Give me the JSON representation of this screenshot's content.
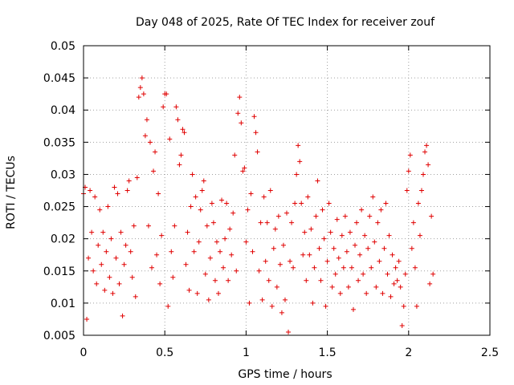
{
  "chart_data": {
    "type": "scatter",
    "title": "Day 048 of 2025, Rate Of TEC Index for receiver zouf",
    "xlabel": "GPS time / hours",
    "ylabel": "ROTI / TECUs",
    "xlim": [
      0,
      2.5
    ],
    "ylim": [
      0.005,
      0.05
    ],
    "xticks": [
      0,
      0.5,
      1,
      1.5,
      2,
      2.5
    ],
    "xtick_labels": [
      "0",
      "0.5",
      "1",
      "1.5",
      "2",
      "2.5"
    ],
    "yticks": [
      0.005,
      0.01,
      0.015,
      0.02,
      0.025,
      0.03,
      0.035,
      0.04,
      0.045,
      0.05
    ],
    "ytick_labels": [
      "0.005",
      "0.01",
      "0.015",
      "0.02",
      "0.025",
      "0.03",
      "0.035",
      "0.04",
      "0.045",
      "0.05"
    ],
    "grid": true,
    "marker": "+",
    "series": [
      {
        "name": "ROTI",
        "color": "#e00000",
        "points": [
          [
            0.0,
            0.027
          ],
          [
            0.01,
            0.028
          ],
          [
            0.02,
            0.0075
          ],
          [
            0.03,
            0.017
          ],
          [
            0.04,
            0.0275
          ],
          [
            0.05,
            0.021
          ],
          [
            0.06,
            0.015
          ],
          [
            0.07,
            0.0265
          ],
          [
            0.08,
            0.013
          ],
          [
            0.09,
            0.019
          ],
          [
            0.1,
            0.0245
          ],
          [
            0.11,
            0.016
          ],
          [
            0.12,
            0.021
          ],
          [
            0.13,
            0.012
          ],
          [
            0.14,
            0.018
          ],
          [
            0.15,
            0.025
          ],
          [
            0.16,
            0.014
          ],
          [
            0.17,
            0.02
          ],
          [
            0.18,
            0.0115
          ],
          [
            0.19,
            0.028
          ],
          [
            0.2,
            0.017
          ],
          [
            0.21,
            0.027
          ],
          [
            0.22,
            0.013
          ],
          [
            0.23,
            0.021
          ],
          [
            0.24,
            0.008
          ],
          [
            0.25,
            0.016
          ],
          [
            0.26,
            0.019
          ],
          [
            0.27,
            0.0275
          ],
          [
            0.28,
            0.029
          ],
          [
            0.29,
            0.018
          ],
          [
            0.3,
            0.014
          ],
          [
            0.31,
            0.022
          ],
          [
            0.32,
            0.011
          ],
          [
            0.33,
            0.0295
          ],
          [
            0.34,
            0.042
          ],
          [
            0.35,
            0.0435
          ],
          [
            0.36,
            0.045
          ],
          [
            0.37,
            0.0425
          ],
          [
            0.38,
            0.036
          ],
          [
            0.39,
            0.0385
          ],
          [
            0.4,
            0.022
          ],
          [
            0.41,
            0.035
          ],
          [
            0.42,
            0.0155
          ],
          [
            0.43,
            0.0305
          ],
          [
            0.44,
            0.0335
          ],
          [
            0.45,
            0.0175
          ],
          [
            0.46,
            0.027
          ],
          [
            0.47,
            0.013
          ],
          [
            0.48,
            0.0205
          ],
          [
            0.49,
            0.0405
          ],
          [
            0.5,
            0.0425
          ],
          [
            0.51,
            0.0425
          ],
          [
            0.52,
            0.0095
          ],
          [
            0.53,
            0.0355
          ],
          [
            0.54,
            0.018
          ],
          [
            0.55,
            0.014
          ],
          [
            0.56,
            0.022
          ],
          [
            0.57,
            0.0405
          ],
          [
            0.58,
            0.0385
          ],
          [
            0.59,
            0.0315
          ],
          [
            0.6,
            0.033
          ],
          [
            0.61,
            0.037
          ],
          [
            0.62,
            0.0365
          ],
          [
            0.63,
            0.016
          ],
          [
            0.64,
            0.021
          ],
          [
            0.65,
            0.012
          ],
          [
            0.66,
            0.025
          ],
          [
            0.67,
            0.03
          ],
          [
            0.68,
            0.018
          ],
          [
            0.69,
            0.0265
          ],
          [
            0.7,
            0.0115
          ],
          [
            0.71,
            0.0195
          ],
          [
            0.72,
            0.0245
          ],
          [
            0.73,
            0.0275
          ],
          [
            0.74,
            0.029
          ],
          [
            0.75,
            0.0145
          ],
          [
            0.76,
            0.022
          ],
          [
            0.77,
            0.0105
          ],
          [
            0.78,
            0.017
          ],
          [
            0.79,
            0.0255
          ],
          [
            0.8,
            0.0225
          ],
          [
            0.81,
            0.0135
          ],
          [
            0.82,
            0.0195
          ],
          [
            0.83,
            0.0115
          ],
          [
            0.84,
            0.018
          ],
          [
            0.85,
            0.026
          ],
          [
            0.86,
            0.0155
          ],
          [
            0.87,
            0.02
          ],
          [
            0.88,
            0.0255
          ],
          [
            0.89,
            0.0135
          ],
          [
            0.9,
            0.0215
          ],
          [
            0.91,
            0.0175
          ],
          [
            0.92,
            0.024
          ],
          [
            0.93,
            0.033
          ],
          [
            0.94,
            0.015
          ],
          [
            0.95,
            0.0395
          ],
          [
            0.96,
            0.042
          ],
          [
            0.97,
            0.038
          ],
          [
            0.98,
            0.0305
          ],
          [
            0.99,
            0.031
          ],
          [
            1.0,
            0.0195
          ],
          [
            1.01,
            0.0245
          ],
          [
            1.02,
            0.01
          ],
          [
            1.03,
            0.027
          ],
          [
            1.04,
            0.018
          ],
          [
            1.05,
            0.039
          ],
          [
            1.06,
            0.0365
          ],
          [
            1.07,
            0.0335
          ],
          [
            1.08,
            0.015
          ],
          [
            1.09,
            0.0225
          ],
          [
            1.1,
            0.0105
          ],
          [
            1.11,
            0.0265
          ],
          [
            1.12,
            0.0165
          ],
          [
            1.13,
            0.0225
          ],
          [
            1.14,
            0.0135
          ],
          [
            1.15,
            0.0275
          ],
          [
            1.16,
            0.0095
          ],
          [
            1.17,
            0.0185
          ],
          [
            1.18,
            0.0215
          ],
          [
            1.19,
            0.0125
          ],
          [
            1.2,
            0.0235
          ],
          [
            1.21,
            0.016
          ],
          [
            1.22,
            0.0085
          ],
          [
            1.23,
            0.019
          ],
          [
            1.24,
            0.0105
          ],
          [
            1.25,
            0.024
          ],
          [
            1.26,
            0.0055
          ],
          [
            1.27,
            0.0165
          ],
          [
            1.28,
            0.0225
          ],
          [
            1.29,
            0.0155
          ],
          [
            1.3,
            0.0255
          ],
          [
            1.31,
            0.03
          ],
          [
            1.32,
            0.0345
          ],
          [
            1.33,
            0.032
          ],
          [
            1.34,
            0.0255
          ],
          [
            1.35,
            0.0175
          ],
          [
            1.36,
            0.021
          ],
          [
            1.37,
            0.0135
          ],
          [
            1.38,
            0.0265
          ],
          [
            1.39,
            0.0175
          ],
          [
            1.4,
            0.0215
          ],
          [
            1.41,
            0.01
          ],
          [
            1.42,
            0.0155
          ],
          [
            1.43,
            0.0235
          ],
          [
            1.44,
            0.029
          ],
          [
            1.45,
            0.0185
          ],
          [
            1.46,
            0.0135
          ],
          [
            1.47,
            0.0245
          ],
          [
            1.48,
            0.02
          ],
          [
            1.49,
            0.0095
          ],
          [
            1.5,
            0.0165
          ],
          [
            1.51,
            0.0255
          ],
          [
            1.52,
            0.021
          ],
          [
            1.53,
            0.0125
          ],
          [
            1.54,
            0.0185
          ],
          [
            1.55,
            0.0145
          ],
          [
            1.56,
            0.023
          ],
          [
            1.57,
            0.017
          ],
          [
            1.58,
            0.0115
          ],
          [
            1.59,
            0.0205
          ],
          [
            1.6,
            0.0155
          ],
          [
            1.61,
            0.0235
          ],
          [
            1.62,
            0.018
          ],
          [
            1.63,
            0.0125
          ],
          [
            1.64,
            0.021
          ],
          [
            1.65,
            0.0155
          ],
          [
            1.66,
            0.009
          ],
          [
            1.67,
            0.019
          ],
          [
            1.68,
            0.0225
          ],
          [
            1.69,
            0.0135
          ],
          [
            1.7,
            0.0175
          ],
          [
            1.71,
            0.0245
          ],
          [
            1.72,
            0.0145
          ],
          [
            1.73,
            0.0205
          ],
          [
            1.74,
            0.0115
          ],
          [
            1.75,
            0.0185
          ],
          [
            1.76,
            0.0235
          ],
          [
            1.77,
            0.0155
          ],
          [
            1.78,
            0.0265
          ],
          [
            1.79,
            0.0195
          ],
          [
            1.8,
            0.0125
          ],
          [
            1.81,
            0.0225
          ],
          [
            1.82,
            0.0165
          ],
          [
            1.83,
            0.0245
          ],
          [
            1.84,
            0.0115
          ],
          [
            1.85,
            0.0185
          ],
          [
            1.86,
            0.0255
          ],
          [
            1.87,
            0.0145
          ],
          [
            1.88,
            0.0205
          ],
          [
            1.89,
            0.011
          ],
          [
            1.9,
            0.0175
          ],
          [
            1.91,
            0.013
          ],
          [
            1.92,
            0.0155
          ],
          [
            1.93,
            0.0135
          ],
          [
            1.94,
            0.0165
          ],
          [
            1.95,
            0.0125
          ],
          [
            1.96,
            0.0065
          ],
          [
            1.97,
            0.0095
          ],
          [
            1.98,
            0.0145
          ],
          [
            1.99,
            0.0275
          ],
          [
            2.0,
            0.0305
          ],
          [
            2.01,
            0.033
          ],
          [
            2.02,
            0.0185
          ],
          [
            2.03,
            0.0225
          ],
          [
            2.04,
            0.0155
          ],
          [
            2.05,
            0.0095
          ],
          [
            2.06,
            0.0255
          ],
          [
            2.07,
            0.0205
          ],
          [
            2.08,
            0.0275
          ],
          [
            2.09,
            0.03
          ],
          [
            2.1,
            0.0335
          ],
          [
            2.11,
            0.0345
          ],
          [
            2.12,
            0.0315
          ],
          [
            2.13,
            0.013
          ],
          [
            2.14,
            0.0235
          ],
          [
            2.15,
            0.0145
          ]
        ]
      }
    ]
  }
}
